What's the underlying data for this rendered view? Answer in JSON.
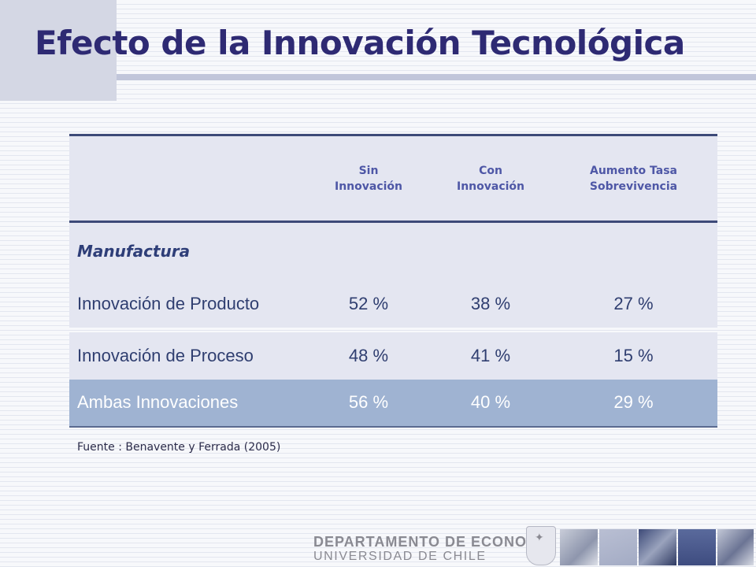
{
  "slide": {
    "title": "Efecto de la Innovación Tecnológica",
    "source": "Fuente : Benavente y Ferrada (2005)"
  },
  "table": {
    "headers": [
      {
        "line1": "Sin",
        "line2": "Innovación"
      },
      {
        "line1": "Con",
        "line2": "Innovación"
      },
      {
        "line1": "Aumento Tasa",
        "line2": "Sobrevivencia"
      }
    ],
    "section_label": "Manufactura",
    "rows": [
      {
        "label": "Innovación de Producto",
        "sin": "52 %",
        "con": "38 %",
        "aumento": "27 %"
      },
      {
        "label": "Innovación de Proceso",
        "sin": "48 %",
        "con": "41 %",
        "aumento": "15 %"
      },
      {
        "label": "Ambas Innovaciones",
        "sin": "56 %",
        "con": "40 %",
        "aumento": "29 %"
      }
    ]
  },
  "footer": {
    "line1": "DEPARTAMENTO DE ECONOMIA",
    "line2": "UNIVERSIDAD DE CHILE",
    "crest_icon": "university-crest-icon"
  },
  "colors": {
    "title": "#2e2a73",
    "header_text": "#4e57a6",
    "table_bg": "#e4e6f1",
    "accent_row": "#9fb3d2",
    "rule": "#3d4a78"
  }
}
